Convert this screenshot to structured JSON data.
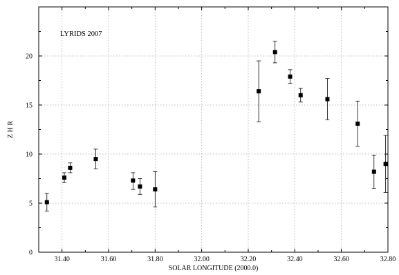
{
  "chart_data": {
    "type": "scatter",
    "title": "",
    "annotation": "LYRIDS 2007",
    "xlabel": "SOLAR LONGITUDE (2000.0)",
    "ylabel": "Z H R",
    "xlim": [
      31.3,
      32.8
    ],
    "ylim": [
      0,
      25
    ],
    "grid": true,
    "x_ticks": [
      31.4,
      31.6,
      31.8,
      32.0,
      32.2,
      32.4,
      32.6,
      32.8
    ],
    "x_tick_labels": [
      "31.40",
      "31.60",
      "31.80",
      "32.00",
      "32.20",
      "32.40",
      "32.60",
      "32.80"
    ],
    "y_ticks": [
      0,
      5,
      10,
      15,
      20
    ],
    "y_tick_labels": [
      "0",
      "5",
      "10",
      "15",
      "20"
    ],
    "series": [
      {
        "marker": "square",
        "color": "#000000",
        "points": [
          {
            "x": 31.335,
            "y": 5.1,
            "err_low": 4.2,
            "err_high": 6.0
          },
          {
            "x": 31.41,
            "y": 7.6,
            "err_low": 7.1,
            "err_high": 8.1
          },
          {
            "x": 31.435,
            "y": 8.6,
            "err_low": 8.1,
            "err_high": 9.1
          },
          {
            "x": 31.545,
            "y": 9.5,
            "err_low": 8.5,
            "err_high": 10.5
          },
          {
            "x": 31.705,
            "y": 7.3,
            "err_low": 6.4,
            "err_high": 8.1
          },
          {
            "x": 31.735,
            "y": 6.7,
            "err_low": 5.9,
            "err_high": 7.5
          },
          {
            "x": 31.8,
            "y": 6.4,
            "err_low": 4.6,
            "err_high": 8.2
          },
          {
            "x": 32.245,
            "y": 16.4,
            "err_low": 13.3,
            "err_high": 19.5
          },
          {
            "x": 32.315,
            "y": 20.4,
            "err_low": 19.3,
            "err_high": 21.5
          },
          {
            "x": 32.38,
            "y": 17.9,
            "err_low": 17.2,
            "err_high": 18.6
          },
          {
            "x": 32.425,
            "y": 16.0,
            "err_low": 15.3,
            "err_high": 16.7
          },
          {
            "x": 32.54,
            "y": 15.6,
            "err_low": 13.5,
            "err_high": 17.7
          },
          {
            "x": 32.67,
            "y": 13.1,
            "err_low": 10.8,
            "err_high": 15.4
          },
          {
            "x": 32.74,
            "y": 8.2,
            "err_low": 6.5,
            "err_high": 9.9
          },
          {
            "x": 32.79,
            "y": 9.0,
            "err_low": 6.1,
            "err_high": 11.9
          }
        ]
      }
    ]
  }
}
